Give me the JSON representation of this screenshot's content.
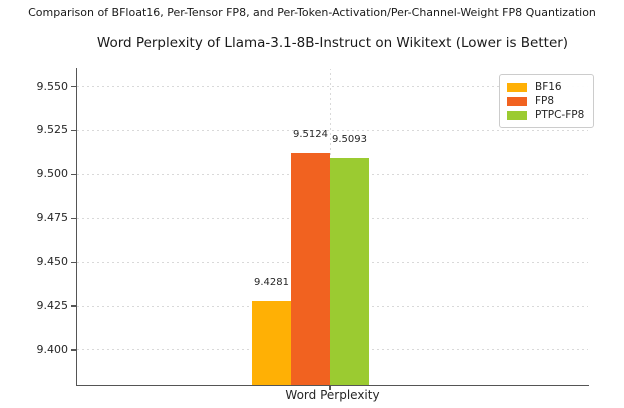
{
  "page": {
    "heading": "Comparison of BFloat16, Per-Tensor FP8, and Per-Token-Activation/Per-Channel-Weight FP8 Quantization"
  },
  "colors": {
    "axis": "#555555",
    "grid": "#d9d9d9",
    "text": "#262626",
    "bf16": "#FFB005",
    "fp8": "#F16220",
    "ptpc_fp8": "#9BCB31"
  },
  "chart_data": {
    "type": "bar",
    "title": "Word Perplexity of Llama-3.1-8B-Instruct on Wikitext (Lower is Better)",
    "categories": [
      "Word Perplexity"
    ],
    "series": [
      {
        "name": "BF16",
        "color": "#FFB005",
        "values": [
          9.4281
        ],
        "labels": [
          "9.4281"
        ]
      },
      {
        "name": "FP8",
        "color": "#F16220",
        "values": [
          9.5124
        ],
        "labels": [
          "9.5124"
        ]
      },
      {
        "name": "PTPC-FP8",
        "color": "#9BCB31",
        "values": [
          9.5093
        ],
        "labels": [
          "9.5093"
        ]
      }
    ],
    "xlabel": "Word Perplexity",
    "ylabel": "",
    "ylim": [
      9.38,
      9.56
    ],
    "yticks": [
      {
        "value": 9.4,
        "label": "9.400"
      },
      {
        "value": 9.425,
        "label": "9.425"
      },
      {
        "value": 9.45,
        "label": "9.450"
      },
      {
        "value": 9.475,
        "label": "9.475"
      },
      {
        "value": 9.5,
        "label": "9.500"
      },
      {
        "value": 9.525,
        "label": "9.525"
      },
      {
        "value": 9.55,
        "label": "9.550"
      }
    ],
    "grid": true,
    "legend_position": "upper right"
  }
}
